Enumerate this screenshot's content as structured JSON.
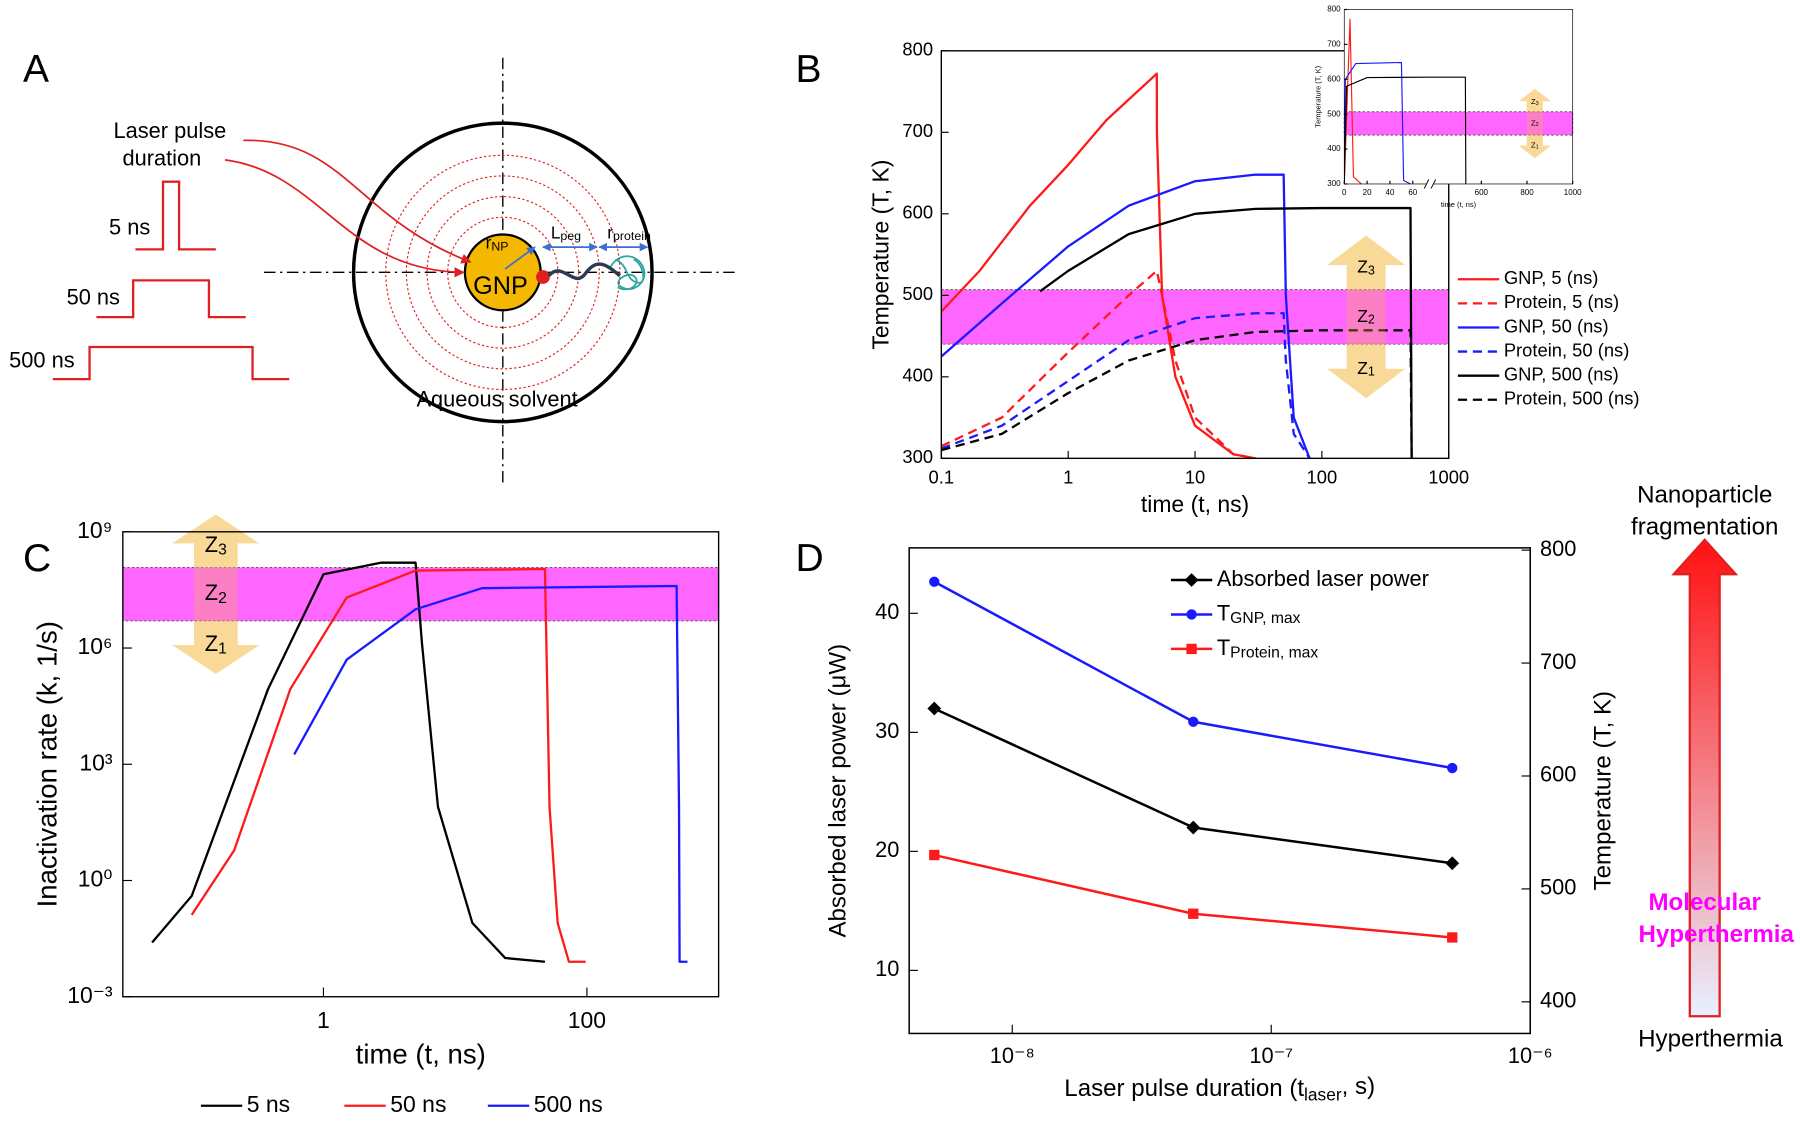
{
  "panel_labels": [
    "A",
    "B",
    "C",
    "D"
  ],
  "diagram": {
    "pulse_label": [
      "Laser pulse",
      "duration"
    ],
    "pulses": [
      "5 ns",
      "50 ns",
      "500 ns"
    ],
    "particle": "GNP",
    "r_np": "rNP",
    "l_peg": "Lpeg",
    "r_protein": "rprotein",
    "solvent": "Aqueous solvent"
  },
  "side_scale": {
    "top": [
      "Nanoparticle",
      "fragmentation"
    ],
    "middle": [
      "Molecular",
      "Hyperthermia"
    ],
    "bottom": "Hyperthermia"
  },
  "chart_data": [
    {
      "type": "line",
      "xlabel": "time (t, ns)",
      "ylabel": "Temperature (T, K)",
      "xscale": "log",
      "xlim": [
        0.1,
        1000
      ],
      "xticks": [
        0.1,
        1,
        10,
        100,
        1000
      ],
      "ylim": [
        300,
        800
      ],
      "yticks": [
        300,
        400,
        500,
        600,
        700,
        800
      ],
      "band": [
        440,
        507
      ],
      "zones": [
        "Z3",
        "Z2",
        "Z1"
      ],
      "legend": "right",
      "series": [
        {
          "name": "GNP, 5 (ns)",
          "color": "#ff1a1a",
          "dash": false,
          "x": [
            0.1,
            0.2,
            0.5,
            1,
            2,
            5,
            5.01,
            5.5,
            7,
            10,
            20,
            30
          ],
          "values": [
            480,
            530,
            610,
            660,
            715,
            772,
            700,
            500,
            400,
            340,
            305,
            300
          ]
        },
        {
          "name": "Protein, 5 (ns)",
          "color": "#ff1a1a",
          "dash": true,
          "x": [
            0.1,
            0.3,
            1,
            3,
            5,
            5.5,
            7,
            10,
            20,
            30
          ],
          "values": [
            315,
            350,
            430,
            500,
            530,
            500,
            420,
            350,
            305,
            300
          ]
        },
        {
          "name": "GNP, 50 (ns)",
          "color": "#1a1aff",
          "dash": false,
          "x": [
            0.1,
            0.3,
            1,
            3,
            10,
            30,
            50,
            52,
            60,
            80
          ],
          "values": [
            425,
            490,
            560,
            610,
            640,
            648,
            648,
            500,
            350,
            300
          ]
        },
        {
          "name": "Protein, 50 (ns)",
          "color": "#1a1aff",
          "dash": true,
          "x": [
            0.1,
            0.3,
            1,
            3,
            10,
            30,
            50,
            52,
            60,
            80
          ],
          "values": [
            312,
            340,
            395,
            445,
            472,
            478,
            478,
            420,
            330,
            300
          ]
        },
        {
          "name": "GNP, 500 (ns)",
          "color": "#000000",
          "dash": false,
          "x": [
            0.6,
            1,
            3,
            10,
            30,
            100,
            500,
            510
          ],
          "values": [
            505,
            530,
            575,
            600,
            606,
            607,
            607,
            300
          ]
        },
        {
          "name": "Protein, 500 (ns)",
          "color": "#000000",
          "dash": true,
          "x": [
            0.1,
            0.3,
            1,
            3,
            10,
            30,
            100,
            500,
            510
          ],
          "values": [
            310,
            330,
            380,
            420,
            445,
            455,
            457,
            457,
            300
          ]
        }
      ]
    },
    {
      "type": "line",
      "xlabel": "time (t, ns)",
      "ylabel": "Temperature (T, K)",
      "xscale": "linear",
      "xlim": [
        0,
        1000
      ],
      "xbreak": [
        70,
        400
      ],
      "xticks": [
        0,
        20,
        40,
        60,
        600,
        800,
        1000
      ],
      "ylim": [
        300,
        800
      ],
      "yticks": [
        300,
        400,
        500,
        600,
        700,
        800
      ],
      "band": [
        440,
        507
      ],
      "zones": [
        "Z3",
        "Z2",
        "Z1"
      ],
      "series": [
        {
          "color": "#ff1a1a",
          "dash": false,
          "x": [
            0,
            5,
            8,
            15
          ],
          "values": [
            300,
            772,
            320,
            300
          ]
        },
        {
          "color": "#1a1aff",
          "dash": false,
          "x": [
            0,
            1,
            10,
            50,
            52,
            58
          ],
          "values": [
            300,
            600,
            645,
            648,
            310,
            300
          ]
        },
        {
          "color": "#000000",
          "dash": false,
          "x": [
            0,
            2,
            20,
            70,
            400,
            530,
            532
          ],
          "values": [
            300,
            580,
            605,
            606,
            606,
            606,
            300
          ]
        }
      ]
    },
    {
      "type": "line",
      "xlabel": "time (t, ns)",
      "ylabel": "Inactivation rate (k, 1/s)",
      "xscale": "log",
      "yscale": "log",
      "xlim": [
        0.03,
        1000
      ],
      "xticks": [
        1,
        100
      ],
      "ylim": [
        0.001,
        1000000000
      ],
      "yticks": [
        {
          "value": 0.001,
          "label": "10⁻³"
        },
        {
          "value": 1,
          "label": "10⁰"
        },
        {
          "value": 1000,
          "label": "10³"
        },
        {
          "value": 1000000,
          "label": "10⁶"
        },
        {
          "value": 1000000000,
          "label": "10⁹"
        }
      ],
      "band": [
        5000000,
        120000000
      ],
      "zones": [
        "Z3",
        "Z2",
        "Z1"
      ],
      "legend": "bottom",
      "series": [
        {
          "name": "5 ns",
          "color": "#000000",
          "dash": false,
          "x": [
            0.05,
            0.1,
            0.38,
            1,
            2.75,
            5,
            5.6,
            7.4,
            13.5,
            24,
            48
          ],
          "values": [
            0.025,
            0.4,
            87000,
            80000000,
            160000000,
            160000000,
            1300000,
            80,
            0.08,
            0.01,
            0.008
          ]
        },
        {
          "name": "50 ns",
          "color": "#ff1a1a",
          "dash": false,
          "x": [
            0.1,
            0.21,
            0.56,
            1.5,
            5,
            48,
            52,
            60,
            73,
            98
          ],
          "values": [
            0.13,
            6,
            87000,
            20000000,
            100000000,
            110000000,
            80,
            0.08,
            0.008,
            0.008
          ]
        },
        {
          "name": "500 ns",
          "color": "#1a1aff",
          "dash": false,
          "x": [
            0.6,
            1.5,
            5,
            16,
            480,
            500,
            505,
            580
          ],
          "values": [
            1800,
            500000,
            10000000,
            35000000,
            40000000,
            80,
            0.008,
            0.008
          ]
        }
      ]
    },
    {
      "type": "line",
      "xlabel": "Laser pulse duration (tlaser, s)",
      "ylabel": "Absorbed laser power (μW)",
      "y2label": "Temperature (T, K)",
      "xscale": "log",
      "xlim": [
        4e-09,
        1e-06
      ],
      "xticks": [
        {
          "value": 1e-08,
          "label": "10⁻⁸"
        },
        {
          "value": 1e-07,
          "label": "10⁻⁷"
        },
        {
          "value": 1e-06,
          "label": "10⁻⁶"
        }
      ],
      "ylim": [
        4.7,
        45.5
      ],
      "yticks": [
        10,
        20,
        30,
        40
      ],
      "y2lim": [
        372,
        802
      ],
      "y2ticks": [
        400,
        500,
        600,
        700,
        800
      ],
      "legend": "upper right",
      "series": [
        {
          "name": "Absorbed laser power",
          "color": "#000000",
          "marker": "diamond",
          "x": [
            5e-09,
            5e-08,
            5e-07
          ],
          "values": [
            32,
            22,
            19
          ]
        },
        {
          "name": "TGNP, max",
          "color": "#1a1aff",
          "marker": "circle",
          "axis": "y2",
          "x": [
            5e-09,
            5e-08,
            5e-07
          ],
          "values": [
            772,
            648,
            607
          ]
        },
        {
          "name": "TProtein, max",
          "color": "#ff1a1a",
          "marker": "square",
          "axis": "y2",
          "x": [
            5e-09,
            5e-08,
            5e-07
          ],
          "values": [
            530,
            478,
            457
          ]
        }
      ]
    }
  ]
}
